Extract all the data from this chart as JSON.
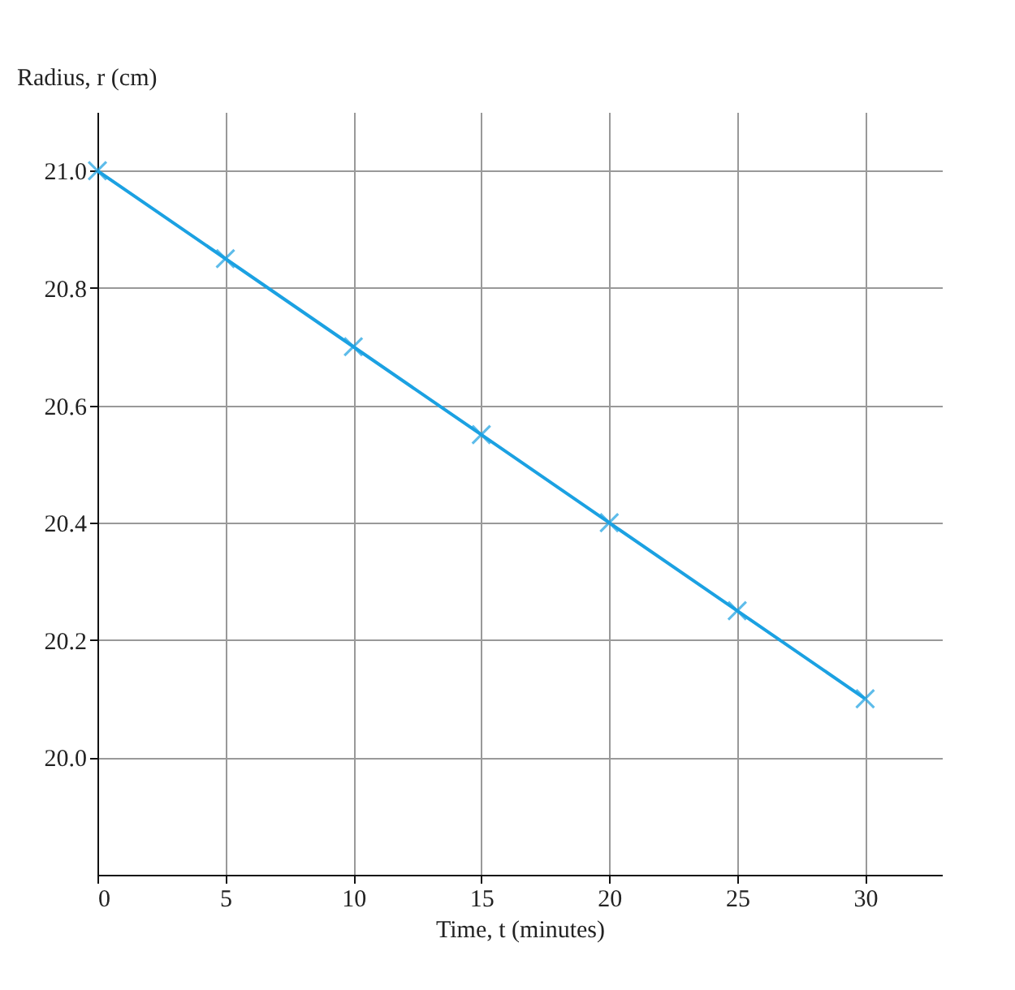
{
  "chart_data": {
    "type": "line",
    "xlabel": "Time, t (minutes)",
    "ylabel": "Radius, r (cm)",
    "x": [
      0,
      5,
      10,
      15,
      20,
      25,
      30
    ],
    "series": [
      {
        "color": "#1ba1e2",
        "values": [
          21.0,
          20.85,
          20.7,
          20.55,
          20.4,
          20.25,
          20.1
        ]
      }
    ],
    "xlim": [
      0,
      33
    ],
    "xticks": [
      0,
      5,
      10,
      15,
      20,
      25,
      30
    ],
    "ylim": [
      19.8,
      21.1
    ],
    "yticks": [
      {
        "value": 20,
        "label": "20.0"
      },
      20.2,
      20.4,
      20.6,
      20.8,
      {
        "value": 21,
        "label": "21.0"
      }
    ],
    "grid": true,
    "marker": "cross",
    "line_style": "solid"
  }
}
